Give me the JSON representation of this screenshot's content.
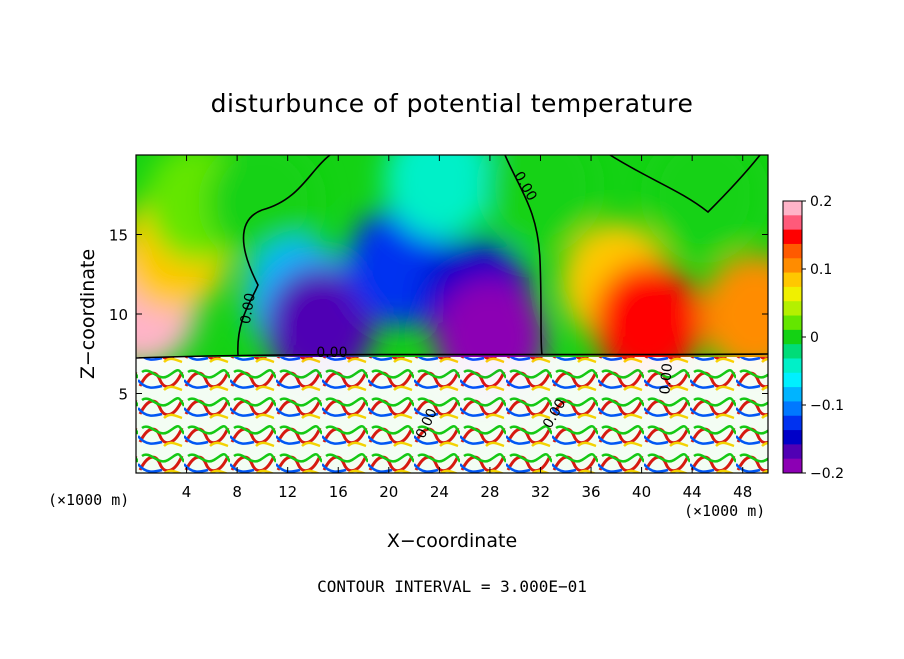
{
  "chart_data": {
    "type": "heatmap",
    "title": "disturbunce of potential temperature",
    "xlabel": "X−coordinate",
    "ylabel": "Z−coordinate",
    "x_unit_left": "(×1000 m)",
    "x_unit_right": "(×1000 m)",
    "xlim": [
      0,
      50
    ],
    "ylim": [
      0,
      20
    ],
    "xticks": [
      4,
      8,
      12,
      16,
      20,
      24,
      28,
      32,
      36,
      40,
      44,
      48
    ],
    "yticks": [
      5,
      10,
      15
    ],
    "colorbar": {
      "range": [
        -0.2,
        0.2
      ],
      "tick_labels": [
        "0.2",
        "0.1",
        "0",
        "−0.1",
        "−0.2"
      ],
      "tick_values": [
        0.2,
        0.1,
        0,
        -0.1,
        -0.2
      ],
      "colors": [
        "#ffb4c8",
        "#ff5a7a",
        "#ff0000",
        "#ff5a00",
        "#ff8c00",
        "#ffc800",
        "#f0f000",
        "#b4f000",
        "#64e600",
        "#14d214",
        "#00dc78",
        "#00f0c8",
        "#00f0ff",
        "#00b4ff",
        "#0078ff",
        "#0032f0",
        "#0000c8",
        "#5000b4",
        "#8c00b4"
      ]
    },
    "contour_labels": [
      "0.00",
      "0.00",
      "0.00",
      "0.00",
      "0.00",
      "0.00"
    ],
    "annotation": "CONTOUR INTERVAL = 3.000E−01",
    "grid": false,
    "regions": [
      {
        "x": 0.5,
        "z": 10.5,
        "value": 0.19
      },
      {
        "x": 3,
        "z": 14,
        "value": 0.1
      },
      {
        "x": 5,
        "z": 17,
        "value": 0.03
      },
      {
        "x": 10,
        "z": 17,
        "value": 0.01
      },
      {
        "x": 13,
        "z": 11,
        "value": -0.08
      },
      {
        "x": 14.5,
        "z": 9.3,
        "value": -0.17
      },
      {
        "x": 21,
        "z": 13,
        "value": -0.13
      },
      {
        "x": 24,
        "z": 18.5,
        "value": -0.04
      },
      {
        "x": 27,
        "z": 11,
        "value": -0.16
      },
      {
        "x": 28,
        "z": 8.5,
        "value": -0.2
      },
      {
        "x": 32,
        "z": 18,
        "value": -0.01
      },
      {
        "x": 38,
        "z": 12,
        "value": 0.09
      },
      {
        "x": 40.5,
        "z": 9.5,
        "value": 0.16
      },
      {
        "x": 45,
        "z": 17.5,
        "value": 0.01
      },
      {
        "x": 49,
        "z": 10,
        "value": 0.12
      }
    ]
  }
}
